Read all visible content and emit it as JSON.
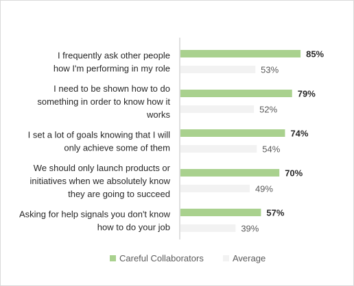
{
  "chart_data": {
    "type": "bar",
    "orientation": "horizontal",
    "categories": [
      [
        "I frequently ask other people",
        "how I'm performing in my role"
      ],
      [
        "I need to be shown how to do",
        "something in order to know how it",
        "works"
      ],
      [
        "I set a lot of goals knowing that I will",
        "only achieve some of them"
      ],
      [
        "We should only launch products or",
        "initiatives when we absolutely know",
        "they are going to succeed"
      ],
      [
        "Asking for help signals you don't know",
        "how to do your job"
      ]
    ],
    "series": [
      {
        "name": "Careful Collaborators",
        "values": [
          85,
          79,
          74,
          70,
          57
        ],
        "labels": [
          "85%",
          "79%",
          "74%",
          "70%",
          "57%"
        ],
        "color": "#a9d18e"
      },
      {
        "name": "Average",
        "values": [
          53,
          52,
          54,
          49,
          39
        ],
        "labels": [
          "53%",
          "52%",
          "54%",
          "49%",
          "39%"
        ],
        "color": "#f2f2f2"
      }
    ],
    "xlim": [
      0,
      100
    ],
    "grid": false,
    "legend_position": "bottom"
  },
  "colors": {
    "axis": "#bfbfbf",
    "text": "#262626"
  }
}
